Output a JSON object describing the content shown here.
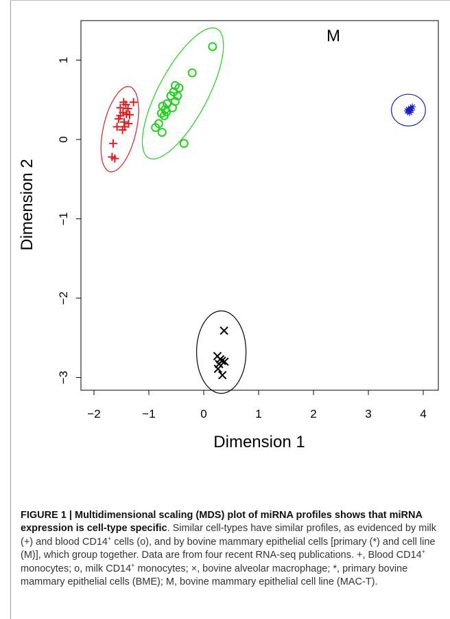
{
  "chart_data": {
    "type": "scatter",
    "title": "",
    "panel_label": "M",
    "xlabel": "Dimension 1",
    "ylabel": "Dimension 2",
    "xlim": [
      -2.15,
      4.3
    ],
    "ylim": [
      -3.2,
      1.5
    ],
    "xticks": [
      -2,
      -1,
      0,
      1,
      2,
      3,
      4
    ],
    "yticks": [
      -3,
      -2,
      -1,
      0,
      1
    ],
    "xtick_labels": [
      "−2",
      "−1",
      "0",
      "1",
      "2",
      "3",
      "4"
    ],
    "ytick_labels": [
      "−3",
      "−2",
      "−1",
      "0",
      "1"
    ],
    "grid": false,
    "series": [
      {
        "marker": "+",
        "color": "#e41a1c",
        "points": [
          [
            -1.46,
            0.47
          ],
          [
            -1.42,
            0.44
          ],
          [
            -1.28,
            0.47
          ],
          [
            -1.52,
            0.4
          ],
          [
            -1.38,
            0.39
          ],
          [
            -1.47,
            0.34
          ],
          [
            -1.52,
            0.3
          ],
          [
            -1.41,
            0.32
          ],
          [
            -1.35,
            0.31
          ],
          [
            -1.55,
            0.26
          ],
          [
            -1.45,
            0.22
          ],
          [
            -1.37,
            0.2
          ],
          [
            -1.58,
            0.16
          ],
          [
            -1.44,
            0.16
          ],
          [
            -1.48,
            0.12
          ],
          [
            -1.65,
            -0.05
          ],
          [
            -1.67,
            -0.22
          ],
          [
            -1.62,
            -0.24
          ]
        ],
        "ellipse": {
          "cx": -1.53,
          "cy": 0.13,
          "rx": 0.3,
          "ry": 0.55,
          "angle": 13
        }
      },
      {
        "marker": "o",
        "color": "#1fd21a",
        "points": [
          [
            0.16,
            1.17
          ],
          [
            -0.21,
            0.84
          ],
          [
            -0.52,
            0.68
          ],
          [
            -0.45,
            0.65
          ],
          [
            -0.55,
            0.6
          ],
          [
            -0.75,
            0.42
          ],
          [
            -0.6,
            0.55
          ],
          [
            -0.48,
            0.55
          ],
          [
            -0.67,
            0.45
          ],
          [
            -0.52,
            0.48
          ],
          [
            -0.7,
            0.38
          ],
          [
            -0.77,
            0.33
          ],
          [
            -0.68,
            0.35
          ],
          [
            -0.57,
            0.4
          ],
          [
            -0.72,
            0.3
          ],
          [
            -0.82,
            0.2
          ],
          [
            -0.88,
            0.15
          ],
          [
            -0.76,
            0.09
          ],
          [
            -0.36,
            -0.05
          ]
        ],
        "ellipse": {
          "cx": -0.38,
          "cy": 0.58,
          "rx": 0.45,
          "ry": 0.92,
          "angle": 28
        }
      },
      {
        "marker": "x",
        "color": "#000000",
        "points": [
          [
            0.37,
            -2.41
          ],
          [
            0.25,
            -2.73
          ],
          [
            0.3,
            -2.77
          ],
          [
            0.33,
            -2.79
          ],
          [
            0.38,
            -2.8
          ],
          [
            0.28,
            -2.83
          ],
          [
            0.26,
            -2.89
          ],
          [
            0.34,
            -2.97
          ]
        ],
        "ellipse": {
          "cx": 0.32,
          "cy": -2.68,
          "rx": 0.45,
          "ry": 0.52,
          "angle": 0
        }
      },
      {
        "marker": "*",
        "color": "#1a1ad2",
        "points": [
          [
            3.71,
            0.36
          ],
          [
            3.73,
            0.38
          ],
          [
            3.75,
            0.34
          ],
          [
            3.77,
            0.39
          ],
          [
            3.8,
            0.41
          ],
          [
            3.74,
            0.36
          ],
          [
            3.78,
            0.37
          ]
        ],
        "ellipse": {
          "cx": 3.73,
          "cy": 0.37,
          "rx": 0.31,
          "ry": 0.2,
          "angle": 0
        }
      }
    ]
  },
  "caption": {
    "title": "FIGURE 1 | Multidimensional scaling (MDS) plot of miRNA profiles shows that miRNA expression is cell-type specific",
    "body_1": ". Similar cell-types have similar profiles, as evidenced by milk (+) and blood CD14",
    "sup_1": "+",
    "body_2": " cells (o), and by bovine mammary epithelial cells [primary (*) and cell line (M)], which group together. Data are from four recent RNA-seq publications. +, Blood CD14",
    "sup_2": "+",
    "body_3": " monocytes; o, milk CD14",
    "sup_3": "+",
    "body_4": " monocytes; ×, bovine alveolar macrophage; *, primary bovine mammary epithelial cells (BME); M, bovine mammary epithelial cell line (MAC-T)."
  }
}
